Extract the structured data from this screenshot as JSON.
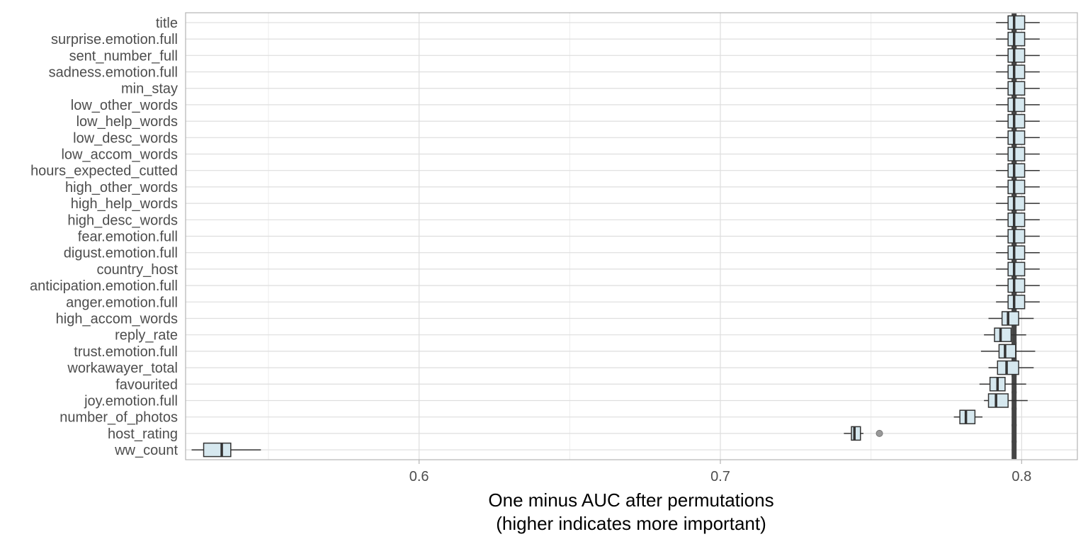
{
  "chart_data": {
    "type": "boxplot",
    "xlabel": [
      "One minus AUC after permutations",
      "(higher indicates more important)"
    ],
    "xlim": [
      0.5225,
      0.8185
    ],
    "xticks": [
      0.6,
      0.7,
      0.8
    ],
    "xtick_labels": [
      "0.6",
      "0.7",
      "0.8"
    ],
    "grid": true,
    "reference_value": 0.7975,
    "box_fill": "#d6e8ef",
    "box_stroke": "#333333",
    "reference_color": "#454545",
    "outlier_color": "#999999",
    "features": [
      {
        "name": "title",
        "whisker_low": 0.7915,
        "q1": 0.7955,
        "median": 0.7975,
        "q3": 0.801,
        "whisker_high": 0.806,
        "outliers": []
      },
      {
        "name": "surprise.emotion.full",
        "whisker_low": 0.7915,
        "q1": 0.7955,
        "median": 0.7975,
        "q3": 0.801,
        "whisker_high": 0.806,
        "outliers": []
      },
      {
        "name": "sent_number_full",
        "whisker_low": 0.7915,
        "q1": 0.7955,
        "median": 0.7975,
        "q3": 0.801,
        "whisker_high": 0.806,
        "outliers": []
      },
      {
        "name": "sadness.emotion.full",
        "whisker_low": 0.7915,
        "q1": 0.7955,
        "median": 0.7975,
        "q3": 0.801,
        "whisker_high": 0.806,
        "outliers": []
      },
      {
        "name": "min_stay",
        "whisker_low": 0.7915,
        "q1": 0.7955,
        "median": 0.7975,
        "q3": 0.801,
        "whisker_high": 0.806,
        "outliers": []
      },
      {
        "name": "low_other_words",
        "whisker_low": 0.7915,
        "q1": 0.7955,
        "median": 0.7975,
        "q3": 0.801,
        "whisker_high": 0.806,
        "outliers": []
      },
      {
        "name": "low_help_words",
        "whisker_low": 0.7915,
        "q1": 0.7955,
        "median": 0.7975,
        "q3": 0.801,
        "whisker_high": 0.806,
        "outliers": []
      },
      {
        "name": "low_desc_words",
        "whisker_low": 0.7915,
        "q1": 0.7955,
        "median": 0.7975,
        "q3": 0.801,
        "whisker_high": 0.806,
        "outliers": []
      },
      {
        "name": "low_accom_words",
        "whisker_low": 0.7915,
        "q1": 0.7955,
        "median": 0.7975,
        "q3": 0.801,
        "whisker_high": 0.806,
        "outliers": []
      },
      {
        "name": "hours_expected_cutted",
        "whisker_low": 0.7915,
        "q1": 0.7955,
        "median": 0.7975,
        "q3": 0.801,
        "whisker_high": 0.806,
        "outliers": []
      },
      {
        "name": "high_other_words",
        "whisker_low": 0.7915,
        "q1": 0.7955,
        "median": 0.7975,
        "q3": 0.801,
        "whisker_high": 0.806,
        "outliers": []
      },
      {
        "name": "high_help_words",
        "whisker_low": 0.7915,
        "q1": 0.7955,
        "median": 0.7975,
        "q3": 0.801,
        "whisker_high": 0.806,
        "outliers": []
      },
      {
        "name": "high_desc_words",
        "whisker_low": 0.7915,
        "q1": 0.7955,
        "median": 0.7975,
        "q3": 0.801,
        "whisker_high": 0.806,
        "outliers": []
      },
      {
        "name": "fear.emotion.full",
        "whisker_low": 0.7915,
        "q1": 0.7955,
        "median": 0.7975,
        "q3": 0.801,
        "whisker_high": 0.806,
        "outliers": []
      },
      {
        "name": "digust.emotion.full",
        "whisker_low": 0.7915,
        "q1": 0.7955,
        "median": 0.7975,
        "q3": 0.801,
        "whisker_high": 0.806,
        "outliers": []
      },
      {
        "name": "country_host",
        "whisker_low": 0.7915,
        "q1": 0.7955,
        "median": 0.7975,
        "q3": 0.801,
        "whisker_high": 0.806,
        "outliers": []
      },
      {
        "name": "anticipation.emotion.full",
        "whisker_low": 0.7915,
        "q1": 0.7955,
        "median": 0.7975,
        "q3": 0.801,
        "whisker_high": 0.806,
        "outliers": []
      },
      {
        "name": "anger.emotion.full",
        "whisker_low": 0.7915,
        "q1": 0.7955,
        "median": 0.7975,
        "q3": 0.801,
        "whisker_high": 0.806,
        "outliers": []
      },
      {
        "name": "high_accom_words",
        "whisker_low": 0.789,
        "q1": 0.7935,
        "median": 0.7955,
        "q3": 0.799,
        "whisker_high": 0.804,
        "outliers": []
      },
      {
        "name": "reply_rate",
        "whisker_low": 0.7875,
        "q1": 0.791,
        "median": 0.793,
        "q3": 0.7965,
        "whisker_high": 0.8015,
        "outliers": []
      },
      {
        "name": "trust.emotion.full",
        "whisker_low": 0.7865,
        "q1": 0.7925,
        "median": 0.7945,
        "q3": 0.798,
        "whisker_high": 0.8045,
        "outliers": []
      },
      {
        "name": "workawayer_total",
        "whisker_low": 0.789,
        "q1": 0.792,
        "median": 0.795,
        "q3": 0.799,
        "whisker_high": 0.804,
        "outliers": []
      },
      {
        "name": "favourited",
        "whisker_low": 0.786,
        "q1": 0.7895,
        "median": 0.792,
        "q3": 0.7945,
        "whisker_high": 0.8015,
        "outliers": []
      },
      {
        "name": "joy.emotion.full",
        "whisker_low": 0.7875,
        "q1": 0.789,
        "median": 0.7915,
        "q3": 0.7955,
        "whisker_high": 0.802,
        "outliers": []
      },
      {
        "name": "number_of_photos",
        "whisker_low": 0.7775,
        "q1": 0.7795,
        "median": 0.7815,
        "q3": 0.7845,
        "whisker_high": 0.787,
        "outliers": []
      },
      {
        "name": "host_rating",
        "whisker_low": 0.741,
        "q1": 0.7435,
        "median": 0.7445,
        "q3": 0.7465,
        "whisker_high": 0.7475,
        "outliers": [
          0.7528
        ]
      },
      {
        "name": "ww_count",
        "whisker_low": 0.5245,
        "q1": 0.5285,
        "median": 0.5345,
        "q3": 0.5375,
        "whisker_high": 0.5475,
        "outliers": []
      }
    ]
  }
}
